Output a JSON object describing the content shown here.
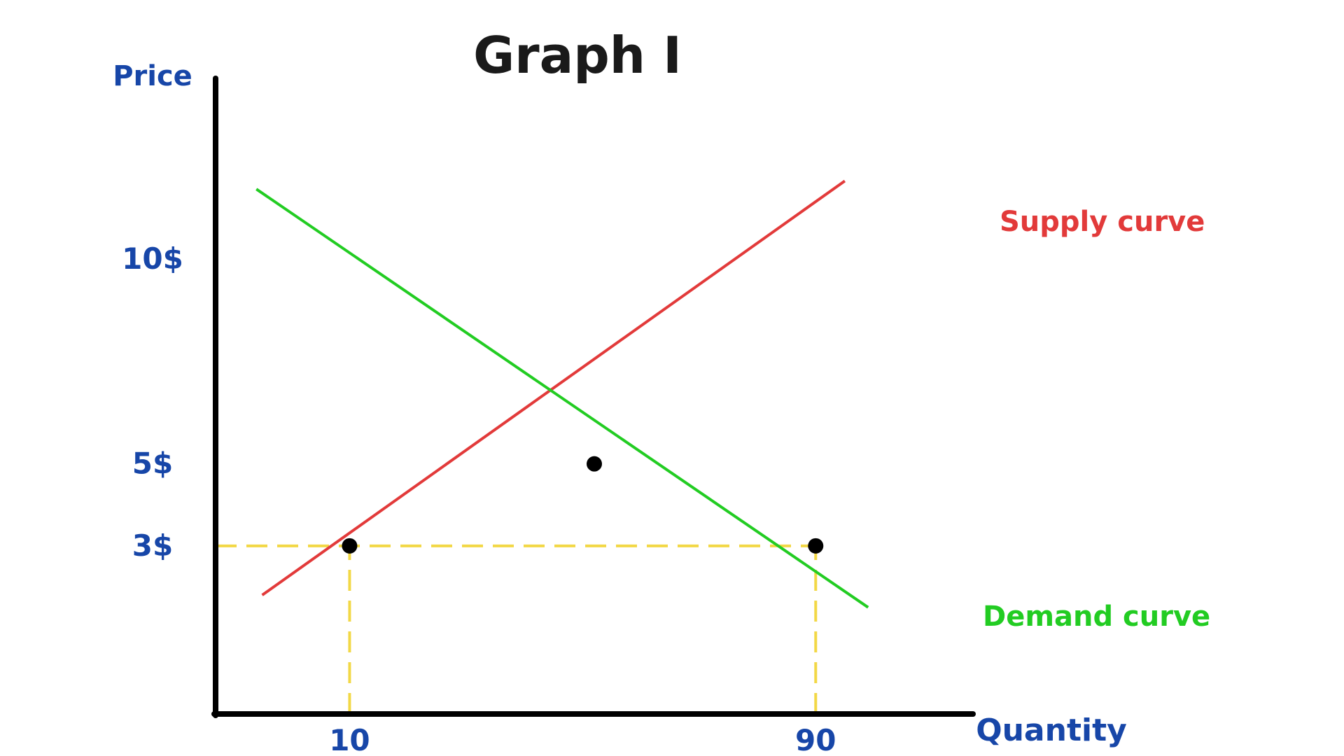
{
  "colors": {
    "axis": "#000000",
    "text_blue": "#1746A8",
    "supply": "#E23A3A",
    "demand": "#22CC22",
    "guide": "#F2D846",
    "point": "#000000",
    "title": "#1a1a1a"
  },
  "chart_data": {
    "type": "line",
    "title": "Graph I",
    "xlabel": "Quantity",
    "ylabel": "Price",
    "x_ticks": [
      {
        "value": 10,
        "label": "10"
      },
      {
        "value": 90,
        "label": "90"
      }
    ],
    "y_ticks": [
      {
        "value": 3,
        "label": "3$"
      },
      {
        "value": 5,
        "label": "5$"
      },
      {
        "value": 10,
        "label": "10$"
      }
    ],
    "xlim": [
      -13,
      117
    ],
    "ylim": [
      -1.1,
      14.4
    ],
    "grid": false,
    "series": [
      {
        "name": "Supply curve",
        "color_key": "supply",
        "x": [
          -5,
          95
        ],
        "y": [
          1.8,
          11.9
        ]
      },
      {
        "name": "Demand curve",
        "color_key": "demand",
        "x": [
          -6,
          99
        ],
        "y": [
          11.7,
          1.5
        ]
      }
    ],
    "points": [
      {
        "x": 52,
        "y": 5
      },
      {
        "x": 10,
        "y": 3
      },
      {
        "x": 90,
        "y": 3
      }
    ],
    "guides": [
      {
        "from": [
          -13,
          3
        ],
        "to": [
          90,
          3
        ]
      },
      {
        "from": [
          10,
          -1.1
        ],
        "to": [
          10,
          3
        ]
      },
      {
        "from": [
          90,
          -1.1
        ],
        "to": [
          90,
          3
        ]
      }
    ]
  }
}
